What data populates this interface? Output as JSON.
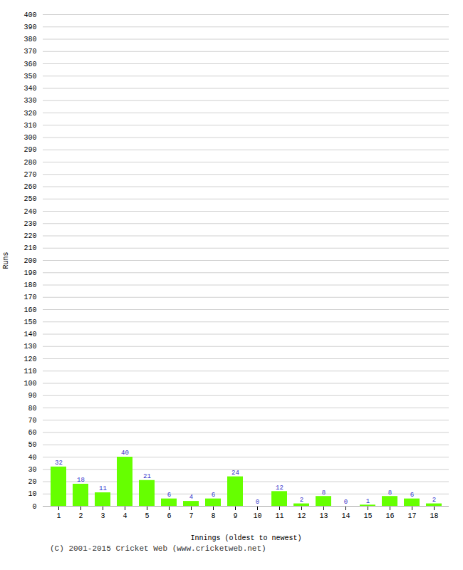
{
  "chart_data": {
    "type": "bar",
    "categories": [
      "1",
      "2",
      "3",
      "4",
      "5",
      "6",
      "7",
      "8",
      "9",
      "10",
      "11",
      "12",
      "13",
      "14",
      "15",
      "16",
      "17",
      "18"
    ],
    "values": [
      32,
      18,
      11,
      40,
      21,
      6,
      4,
      6,
      24,
      0,
      12,
      2,
      8,
      0,
      1,
      8,
      6,
      2
    ],
    "color": "#66ff00",
    "xlabel": "Innings (oldest to newest)",
    "ylabel": "Runs",
    "ylim": [
      0,
      400
    ],
    "yticks": [
      0,
      10,
      20,
      30,
      40,
      50,
      60,
      70,
      80,
      90,
      100,
      110,
      120,
      130,
      140,
      150,
      160,
      170,
      180,
      190,
      200,
      210,
      220,
      230,
      240,
      250,
      260,
      270,
      280,
      290,
      300,
      310,
      320,
      330,
      340,
      350,
      360,
      370,
      380,
      390,
      400
    ],
    "grid": true,
    "data_labels": true,
    "annotations": [
      "(C) 2001-2015 Cricket Web (www.cricketweb.net)"
    ]
  }
}
